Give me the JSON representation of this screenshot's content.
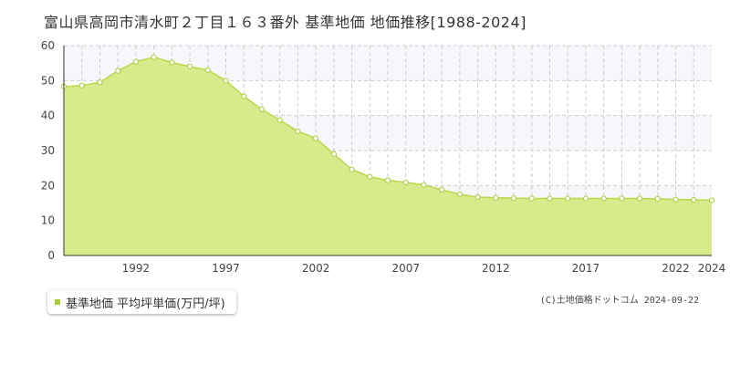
{
  "title": "富山県高岡市清水町２丁目１６３番外  基準地価  地価推移[1988-2024]",
  "colors": {
    "area_fill": "#d8eb8c",
    "line": "#b8d84a",
    "marker_fill": "#ffffff",
    "marker_stroke": "#a9cc3a",
    "grid": "#cccccc",
    "plot_band": "#f7f7fb",
    "legend_marker": "#a9cc3a"
  },
  "legend": {
    "label": "基準地価 平均坪単価(万円/坪)"
  },
  "credit": "(C)土地価格ドットコム 2024-09-22",
  "chart_data": {
    "type": "area",
    "title": "富山県高岡市清水町２丁目１６３番外  基準地価  地価推移[1988-2024]",
    "xlabel": "",
    "ylabel": "",
    "ylim": [
      0,
      60
    ],
    "yticks": [
      0,
      10,
      20,
      30,
      40,
      50,
      60
    ],
    "xlim": [
      1988,
      2024
    ],
    "xticks": [
      1992,
      1997,
      2002,
      2007,
      2012,
      2017,
      2022,
      2024
    ],
    "grid": true,
    "legend_position": "bottom-left",
    "series": [
      {
        "name": "基準地価 平均坪単価(万円/坪)",
        "x": [
          1988,
          1989,
          1990,
          1991,
          1992,
          1993,
          1994,
          1995,
          1996,
          1997,
          1998,
          1999,
          2000,
          2001,
          2002,
          2003,
          2004,
          2005,
          2006,
          2007,
          2008,
          2009,
          2010,
          2011,
          2012,
          2013,
          2014,
          2015,
          2016,
          2017,
          2018,
          2019,
          2020,
          2021,
          2022,
          2023,
          2024
        ],
        "values": [
          48.3,
          48.6,
          49.5,
          52.8,
          55.4,
          56.7,
          55.2,
          54.0,
          53.0,
          50.0,
          45.5,
          41.8,
          38.7,
          35.5,
          33.5,
          29.0,
          24.6,
          22.5,
          21.5,
          20.9,
          20.2,
          18.8,
          17.5,
          16.7,
          16.5,
          16.4,
          16.3,
          16.3,
          16.3,
          16.3,
          16.3,
          16.3,
          16.3,
          16.2,
          16.0,
          15.9,
          15.8
        ]
      }
    ]
  }
}
